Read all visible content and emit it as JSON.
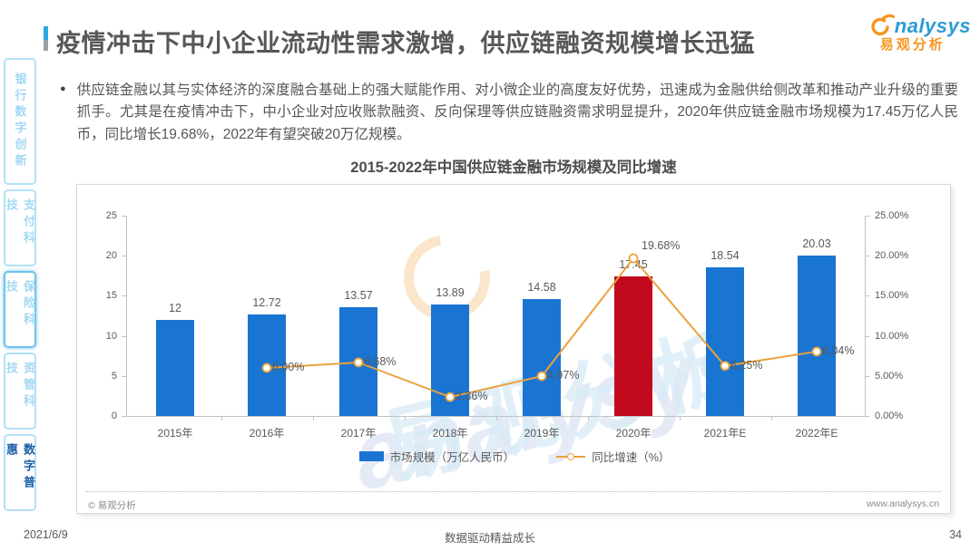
{
  "header": {
    "title": "疫情冲击下中小企业流动性需求激增，供应链融资规模增长迅猛",
    "logo": {
      "brand_rest": "nalysys",
      "brand_cn": "易观分析",
      "brand_color": "#2e9bd5",
      "accent_color": "#f7941e"
    }
  },
  "sidebar": {
    "items": [
      {
        "label": "银行数字创新"
      },
      {
        "label": "支付科技"
      },
      {
        "label": "保险科技"
      },
      {
        "label": "资管科技"
      },
      {
        "label": "数字普惠"
      }
    ]
  },
  "summary": {
    "bullet": "供应链金融以其与实体经济的深度融合基础上的强大赋能作用、对小微企业的高度友好优势，迅速成为金融供给侧改革和推动产业升级的重要抓手。尤其是在疫情冲击下，中小企业对应收账款融资、反向保理等供应链融资需求明显提升，2020年供应链金融市场规模为17.45万亿人民币，同比增长19.68%，2022年有望突破20万亿规模。"
  },
  "chart_data": {
    "type": "bar+line",
    "title": "2015-2022年中国供应链金融市场规模及同比增速",
    "categories": [
      "2015年",
      "2016年",
      "2017年",
      "2018年",
      "2019年",
      "2020年",
      "2021年E",
      "2022年E"
    ],
    "series": [
      {
        "name": "市场规模（万亿人民币）",
        "type": "bar",
        "values": [
          12,
          12.72,
          13.57,
          13.89,
          14.58,
          17.45,
          18.54,
          20.03
        ],
        "labels": [
          "12",
          "12.72",
          "13.57",
          "13.89",
          "14.58",
          "17.45",
          "18.54",
          "20.03"
        ]
      },
      {
        "name": "同比增速（%）",
        "type": "line",
        "values": [
          null,
          6.0,
          6.68,
          2.36,
          4.97,
          19.68,
          6.25,
          8.04
        ],
        "labels": [
          "",
          "6.00%",
          "6.68%",
          "2.36%",
          "4.97%",
          "19.68%",
          "6.25%",
          "8.04%"
        ]
      }
    ],
    "left_axis": {
      "min": 0,
      "max": 25,
      "ticks": [
        "25",
        "20",
        "15",
        "10",
        "5",
        "0"
      ]
    },
    "right_axis": {
      "min": 0,
      "max": 25,
      "ticks": [
        "25.00%",
        "20.00%",
        "15.00%",
        "10.00%",
        "5.00%",
        "0.00%"
      ]
    },
    "bar_color": "#1a74d2",
    "highlight_color": "#c20a1e",
    "highlight_index": 5,
    "line_color": "#e9a23b",
    "legend_position": "bottom",
    "grid": false
  },
  "watermark": {
    "en": "analysys",
    "cn": "易观分析"
  },
  "chart_footer": {
    "copyright": "© 易观分析",
    "website": "www.analysys.cn"
  },
  "footer": {
    "date": "2021/6/9",
    "motto": "数据驱动精益成长",
    "page": "34"
  }
}
